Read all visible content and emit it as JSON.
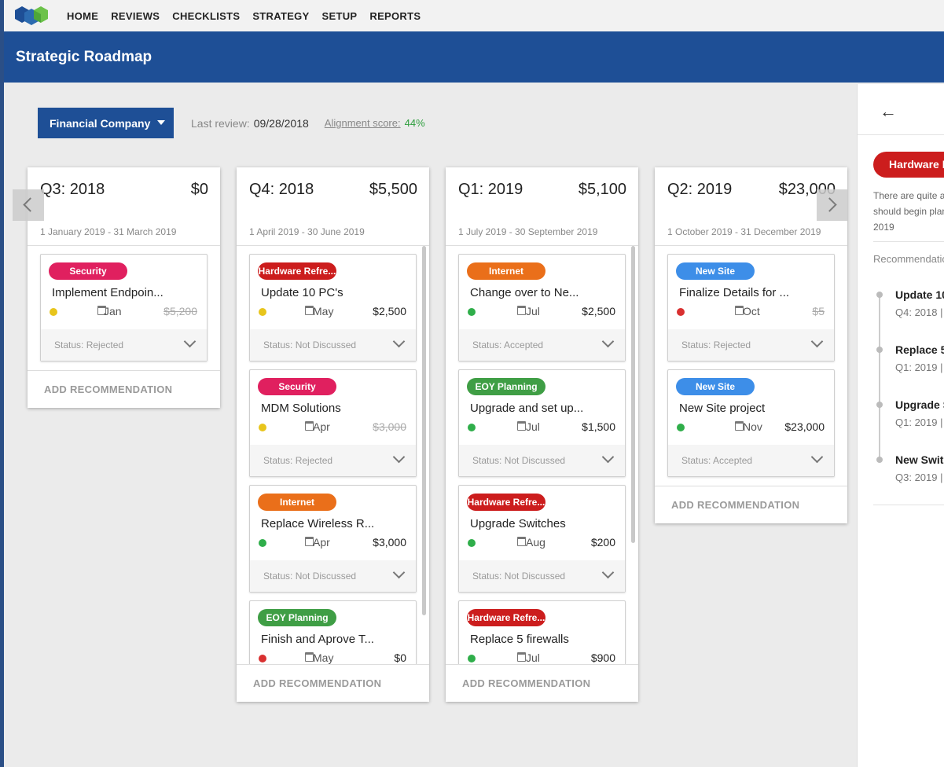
{
  "nav": {
    "items": [
      "HOME",
      "REVIEWS",
      "CHECKLISTS",
      "STRATEGY",
      "SETUP",
      "REPORTS"
    ]
  },
  "page": {
    "title": "Strategic Roadmap"
  },
  "filter": {
    "company": "Financial Company",
    "last_review_label": "Last review:",
    "last_review_value": "09/28/2018",
    "alignment_label": "Alignment score:",
    "alignment_value": "44%"
  },
  "columns": [
    {
      "quarter": "Q3: 2018",
      "amount": "$0",
      "range": "1 January 2019 - 31 March 2019",
      "add_label": "ADD RECOMMENDATION",
      "cards": [
        {
          "tag": "Security",
          "tag_color": "#e0205f",
          "title": "Implement Endpoin...",
          "priority": "#e8c51c",
          "month": "Jan",
          "price": "$5,200",
          "struck": true,
          "status": "Status: Rejected"
        }
      ]
    },
    {
      "quarter": "Q4: 2018",
      "amount": "$5,500",
      "range": "1 April 2019 - 30 June 2019",
      "add_label": "ADD RECOMMENDATION",
      "cards": [
        {
          "tag": "Hardware Refre...",
          "tag_color": "#cc1d1d",
          "title": "Update 10 PC's",
          "priority": "#e8c51c",
          "month": "May",
          "price": "$2,500",
          "struck": false,
          "status": "Status: Not Discussed"
        },
        {
          "tag": "Security",
          "tag_color": "#e0205f",
          "title": "MDM Solutions",
          "priority": "#e8c51c",
          "month": "Apr",
          "price": "$3,000",
          "struck": true,
          "status": "Status: Rejected"
        },
        {
          "tag": "Internet",
          "tag_color": "#ea6f1a",
          "title": "Replace Wireless R...",
          "priority": "#2fae4a",
          "month": "Apr",
          "price": "$3,000",
          "struck": false,
          "status": "Status: Not Discussed"
        },
        {
          "tag": "EOY Planning",
          "tag_color": "#3f9e45",
          "title": "Finish and Aprove T...",
          "priority": "#d93030",
          "month": "May",
          "price": "$0",
          "struck": false,
          "status": ""
        }
      ]
    },
    {
      "quarter": "Q1: 2019",
      "amount": "$5,100",
      "range": "1 July 2019 - 30 September 2019",
      "add_label": "ADD RECOMMENDATION",
      "cards": [
        {
          "tag": "Internet",
          "tag_color": "#ea6f1a",
          "title": "Change over to Ne...",
          "priority": "#2fae4a",
          "month": "Jul",
          "price": "$2,500",
          "struck": false,
          "status": "Status: Accepted"
        },
        {
          "tag": "EOY Planning",
          "tag_color": "#3f9e45",
          "title": "Upgrade and set up...",
          "priority": "#2fae4a",
          "month": "Jul",
          "price": "$1,500",
          "struck": false,
          "status": "Status: Not Discussed"
        },
        {
          "tag": "Hardware Refre...",
          "tag_color": "#cc1d1d",
          "title": "Upgrade Switches",
          "priority": "#2fae4a",
          "month": "Aug",
          "price": "$200",
          "struck": false,
          "status": "Status: Not Discussed"
        },
        {
          "tag": "Hardware Refre...",
          "tag_color": "#cc1d1d",
          "title": "Replace 5 firewalls",
          "priority": "#2fae4a",
          "month": "Jul",
          "price": "$900",
          "struck": false,
          "status": ""
        }
      ]
    },
    {
      "quarter": "Q2: 2019",
      "amount": "$23,000",
      "range": "1 October 2019 - 31 December 2019",
      "add_label": "ADD RECOMMENDATION",
      "cards": [
        {
          "tag": "New Site",
          "tag_color": "#3d8ee8",
          "title": "Finalize Details for ...",
          "priority": "#d93030",
          "month": "Oct",
          "price": "$5",
          "struck": true,
          "status": "Status: Rejected"
        },
        {
          "tag": "New Site",
          "tag_color": "#3d8ee8",
          "title": "New Site project",
          "priority": "#2fae4a",
          "month": "Nov",
          "price": "$23,000",
          "struck": false,
          "status": "Status: Accepted"
        }
      ]
    }
  ],
  "panel": {
    "tag": "Hardware R",
    "description": [
      "There are quite a",
      "should begin plan",
      "2019"
    ],
    "recommendations_label": "Recommendations",
    "items": [
      {
        "title": "Update 10",
        "sub": "Q4: 2018 |"
      },
      {
        "title": "Replace 5",
        "sub": "Q1: 2019 |"
      },
      {
        "title": "Upgrade S",
        "sub": "Q1: 2019 |"
      },
      {
        "title": "New Swit",
        "sub": "Q3: 2019 |"
      }
    ]
  }
}
